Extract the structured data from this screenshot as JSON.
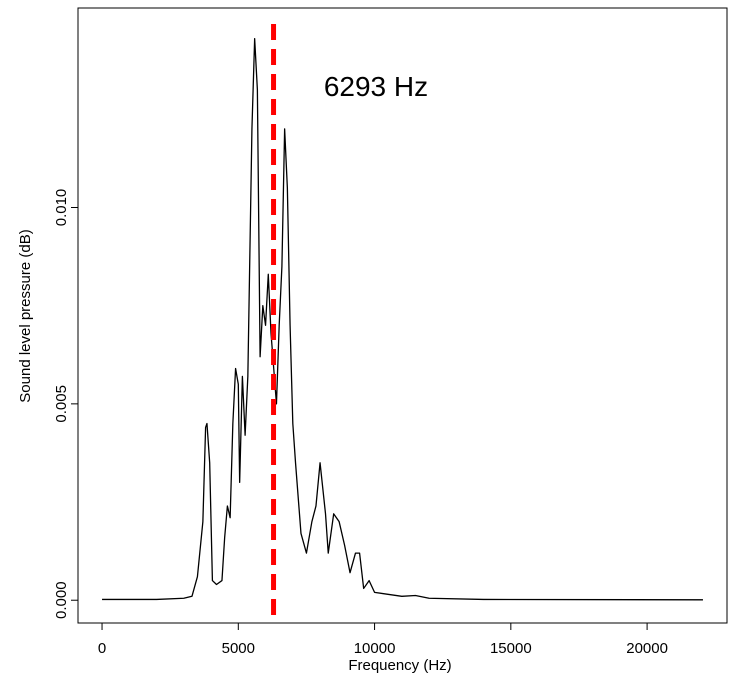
{
  "chart_data": {
    "type": "line",
    "xlabel": "Frequency (Hz)",
    "ylabel": "Sound level pressure (dB)",
    "x": [
      0,
      2000,
      3000,
      3300,
      3500,
      3700,
      3800,
      3850,
      3950,
      4050,
      4200,
      4400,
      4500,
      4600,
      4700,
      4800,
      4900,
      5000,
      5050,
      5150,
      5250,
      5350,
      5500,
      5600,
      5700,
      5800,
      5900,
      6000,
      6100,
      6200,
      6400,
      6500,
      6600,
      6700,
      6800,
      6900,
      7000,
      7100,
      7300,
      7500,
      7700,
      7850,
      8000,
      8200,
      8300,
      8500,
      8700,
      8900,
      9100,
      9300,
      9450,
      9600,
      9800,
      10000,
      11000,
      11500,
      12000,
      14000,
      22050
    ],
    "values": [
      2e-05,
      2e-05,
      5e-05,
      0.0001,
      0.0006,
      0.002,
      0.0044,
      0.0045,
      0.0035,
      0.0005,
      0.0004,
      0.0005,
      0.0016,
      0.0024,
      0.0021,
      0.0045,
      0.0059,
      0.0055,
      0.003,
      0.0057,
      0.0042,
      0.0057,
      0.012,
      0.0143,
      0.013,
      0.0062,
      0.0075,
      0.007,
      0.0083,
      0.0068,
      0.005,
      0.007,
      0.0085,
      0.012,
      0.0105,
      0.007,
      0.0045,
      0.0035,
      0.0017,
      0.0012,
      0.002,
      0.0024,
      0.0035,
      0.0022,
      0.0012,
      0.0022,
      0.002,
      0.0014,
      0.0007,
      0.0012,
      0.0012,
      0.0003,
      0.0005,
      0.0002,
      0.0001,
      0.00012,
      5e-05,
      2e-05,
      1e-05
    ],
    "color": "#000000",
    "xlim": [
      -882,
      22932
    ],
    "ylim": [
      -0.00058,
      0.01508
    ],
    "xticks": [
      0,
      5000,
      10000,
      15000,
      20000
    ],
    "yticks": [
      {
        "value": 0,
        "label": "0.000"
      },
      {
        "value": 0.005,
        "label": "0.005"
      },
      {
        "value": 0.01,
        "label": "0.010"
      }
    ],
    "vline": {
      "value": 6293,
      "color": "#ff0000"
    },
    "annotation": "6293 Hz"
  }
}
